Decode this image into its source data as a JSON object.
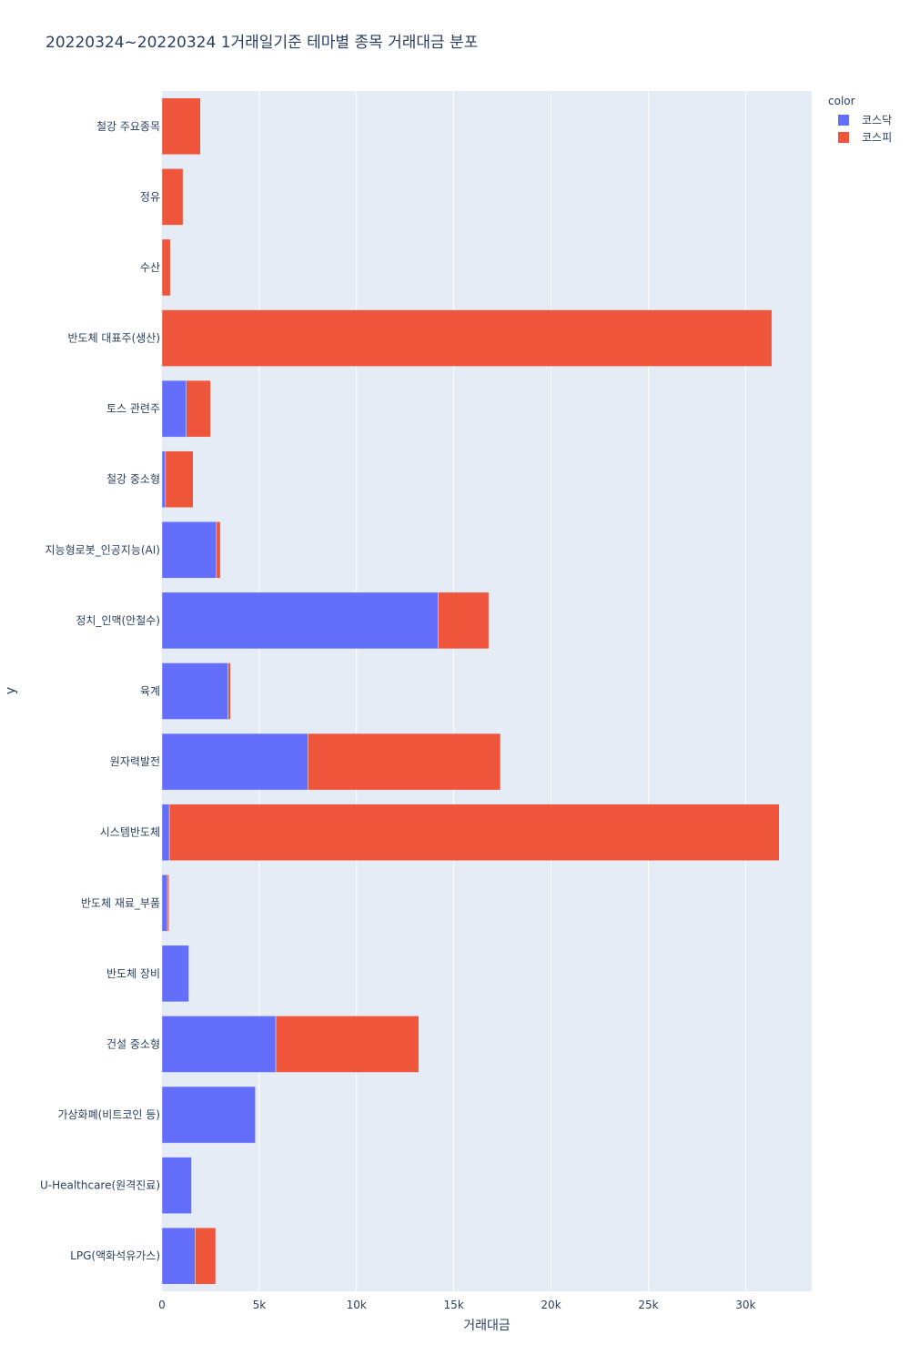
{
  "chart_data": {
    "type": "bar",
    "orientation": "horizontal",
    "barmode": "stack",
    "title": "20220324~20220324 1거래일기준 테마별 종목 거래대금 분포",
    "xlabel": "거래대금",
    "ylabel": "y",
    "xlim": [
      0,
      33400
    ],
    "x_ticks": [
      0,
      5000,
      10000,
      15000,
      20000,
      25000,
      30000
    ],
    "x_tick_labels": [
      "0",
      "5k",
      "10k",
      "15k",
      "20k",
      "25k",
      "30k"
    ],
    "grid": true,
    "legend_title": "color",
    "legend_position": "top-right",
    "categories": [
      "철강 주요종목",
      "정유",
      "수산",
      "반도체 대표주(생산)",
      "토스 관련주",
      "철강 중소형",
      "지능형로봇_인공지능(AI)",
      "정치_인맥(안철수)",
      "육계",
      "원자력발전",
      "시스템반도체",
      "반도체 재료_부품",
      "반도체 장비",
      "건설 중소형",
      "가상화폐(비트코인 등)",
      "U-Healthcare(원격진료)",
      "LPG(액화석유가스)"
    ],
    "series": [
      {
        "name": "코스닥",
        "color": "#636efa",
        "values": [
          0,
          0,
          0,
          0,
          1250,
          180,
          2800,
          14200,
          3400,
          7500,
          380,
          280,
          1380,
          5850,
          4800,
          1520,
          1700
        ]
      },
      {
        "name": "코스피",
        "color": "#ef553b",
        "values": [
          1980,
          1080,
          430,
          31350,
          1250,
          1420,
          200,
          2600,
          120,
          9900,
          31350,
          80,
          0,
          7350,
          0,
          0,
          1060
        ]
      }
    ]
  }
}
